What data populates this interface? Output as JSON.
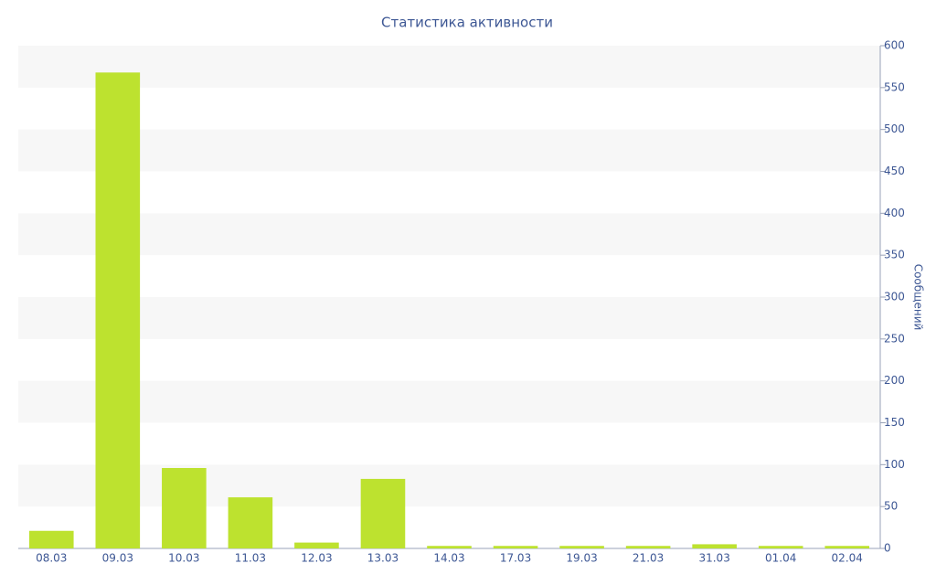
{
  "chart_data": {
    "type": "bar",
    "title": "Статистика активности",
    "y_label": "Сообщений",
    "categories": [
      "08.03",
      "09.03",
      "10.03",
      "11.03",
      "12.03",
      "13.03",
      "14.03",
      "17.03",
      "19.03",
      "21.03",
      "31.03",
      "01.04",
      "02.04"
    ],
    "values": [
      21,
      568,
      96,
      61,
      7,
      83,
      3,
      3,
      3,
      3,
      5,
      3,
      3
    ],
    "color": "#bde22f",
    "ylim": [
      0,
      600
    ],
    "yticks": [
      0,
      50,
      100,
      150,
      200,
      250,
      300,
      350,
      400,
      450,
      500,
      550,
      600
    ],
    "grid": true,
    "y_axis_side": "right"
  }
}
